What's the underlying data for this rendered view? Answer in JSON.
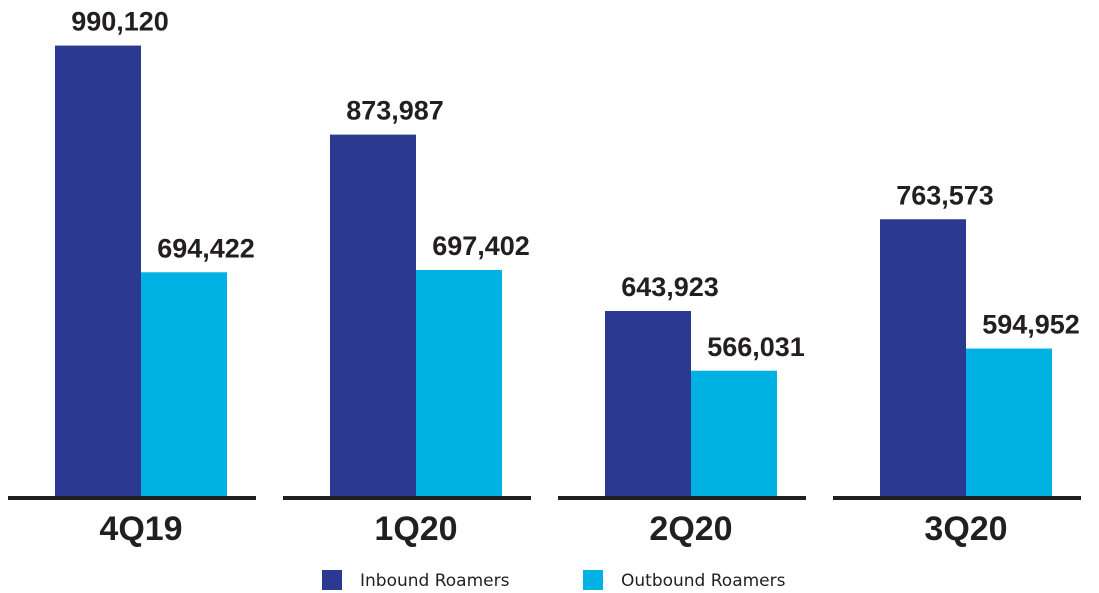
{
  "chart_data": {
    "type": "bar",
    "categories": [
      "4Q19",
      "1Q20",
      "2Q20",
      "3Q20"
    ],
    "series": [
      {
        "name": "Inbound Roamers",
        "color": "#2b3990",
        "values": [
          990120,
          873987,
          643923,
          763573
        ],
        "value_labels": [
          "990,120",
          "873,987",
          "643,923",
          "763,573"
        ]
      },
      {
        "name": "Outbound Roamers",
        "color": "#00b2e3",
        "values": [
          694422,
          697402,
          566031,
          594952
        ],
        "value_labels": [
          "694,422",
          "697,402",
          "566,031",
          "594,952"
        ]
      }
    ],
    "ylim": [
      400000,
      1000000
    ]
  }
}
